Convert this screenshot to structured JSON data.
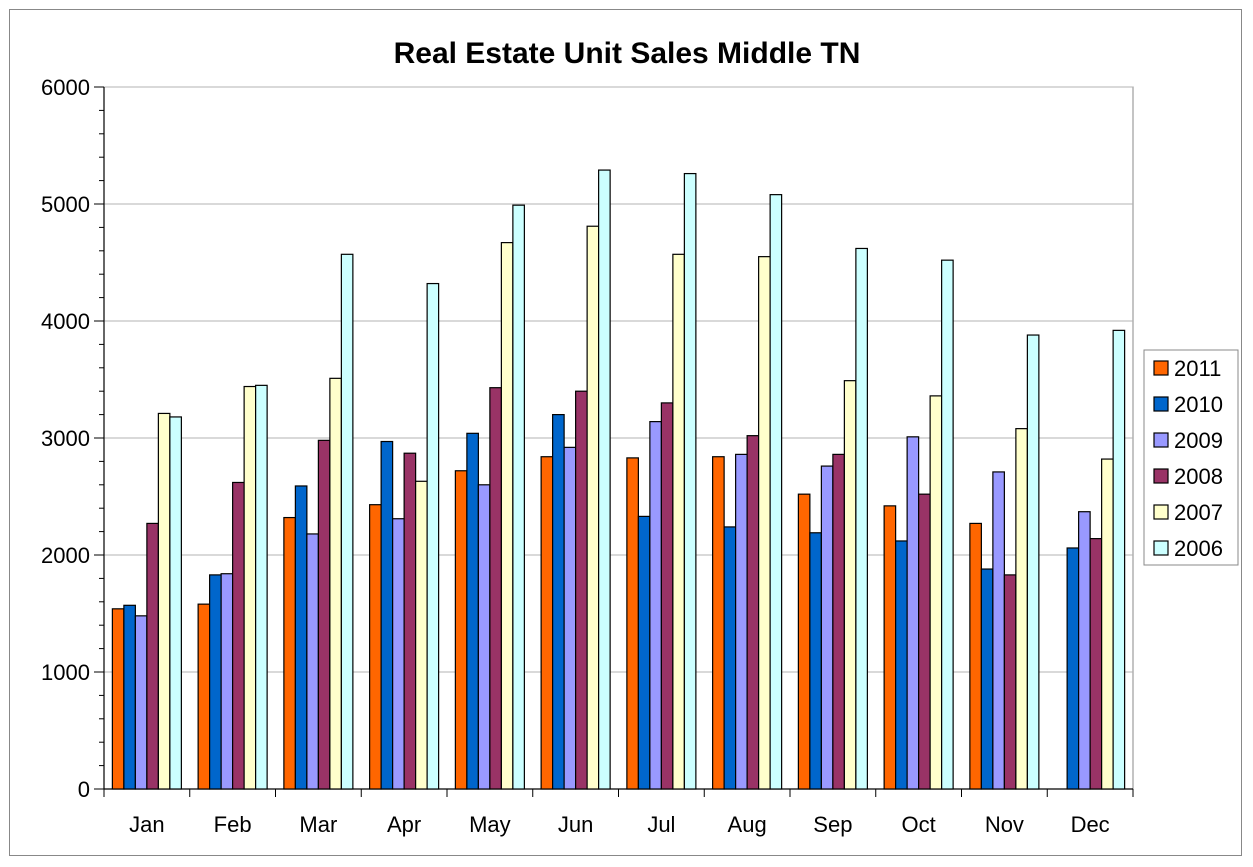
{
  "chart_data": {
    "type": "bar",
    "title": "Real Estate Unit Sales Middle TN",
    "xlabel": "",
    "ylabel": "",
    "ylim": [
      0,
      6000
    ],
    "y_ticks": [
      0,
      1000,
      2000,
      3000,
      4000,
      5000,
      6000
    ],
    "y_tick_labels": [
      "0",
      "1000",
      "2000",
      "3000",
      "4000",
      "5000",
      "6000"
    ],
    "grid": true,
    "legend_position": "right",
    "categories": [
      "Jan",
      "Feb",
      "Mar",
      "Apr",
      "May",
      "Jun",
      "Jul",
      "Aug",
      "Sep",
      "Oct",
      "Nov",
      "Dec"
    ],
    "series": [
      {
        "name": "2011",
        "color": "#ff6600",
        "values": [
          1540,
          1580,
          2320,
          2430,
          2720,
          2840,
          2830,
          2840,
          2520,
          2420,
          2270,
          null
        ]
      },
      {
        "name": "2010",
        "color": "#0066cc",
        "values": [
          1570,
          1830,
          2590,
          2970,
          3040,
          3200,
          2330,
          2240,
          2190,
          2120,
          1880,
          2060
        ]
      },
      {
        "name": "2009",
        "color": "#9999ff",
        "values": [
          1480,
          1840,
          2180,
          2310,
          2600,
          2920,
          3140,
          2860,
          2760,
          3010,
          2710,
          2370
        ]
      },
      {
        "name": "2008",
        "color": "#993366",
        "values": [
          2270,
          2620,
          2980,
          2870,
          3430,
          3400,
          3300,
          3020,
          2860,
          2520,
          1830,
          2140
        ]
      },
      {
        "name": "2007",
        "color": "#ffffcc",
        "values": [
          3210,
          3440,
          3510,
          2630,
          4670,
          4810,
          4570,
          4550,
          3490,
          3360,
          3080,
          2820
        ]
      },
      {
        "name": "2006",
        "color": "#ccffff",
        "values": [
          3180,
          3450,
          4570,
          4320,
          4990,
          5290,
          5260,
          5080,
          4620,
          4520,
          3880,
          3920
        ]
      }
    ]
  }
}
